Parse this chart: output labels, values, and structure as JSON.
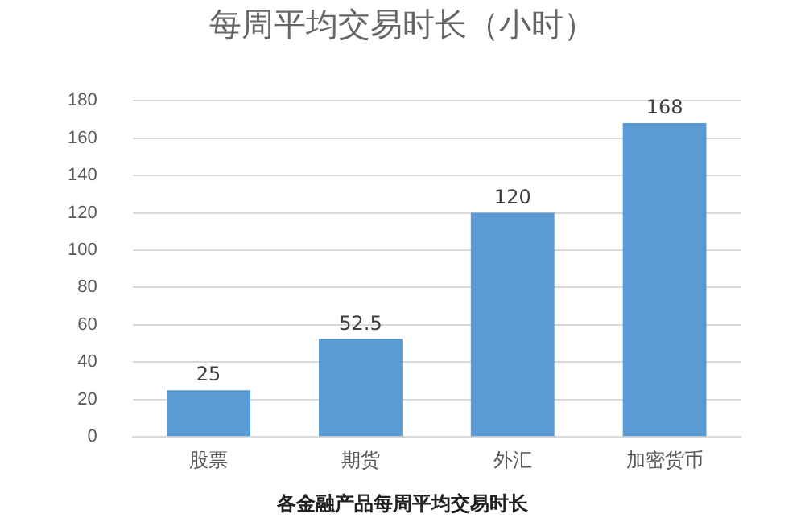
{
  "chart_data": {
    "type": "bar",
    "title": "每周平均交易时长（小时）",
    "categories": [
      "股票",
      "期货",
      "外汇",
      "加密货币"
    ],
    "values": [
      25,
      52.5,
      120,
      168
    ],
    "color": "#5b9bd5",
    "ylim": [
      0,
      180
    ],
    "yticks": [
      0,
      20,
      40,
      60,
      80,
      100,
      120,
      140,
      160,
      180
    ],
    "grid": "y",
    "data_labels": true,
    "annotations": [
      "各金融产品每周平均交易时长"
    ]
  }
}
